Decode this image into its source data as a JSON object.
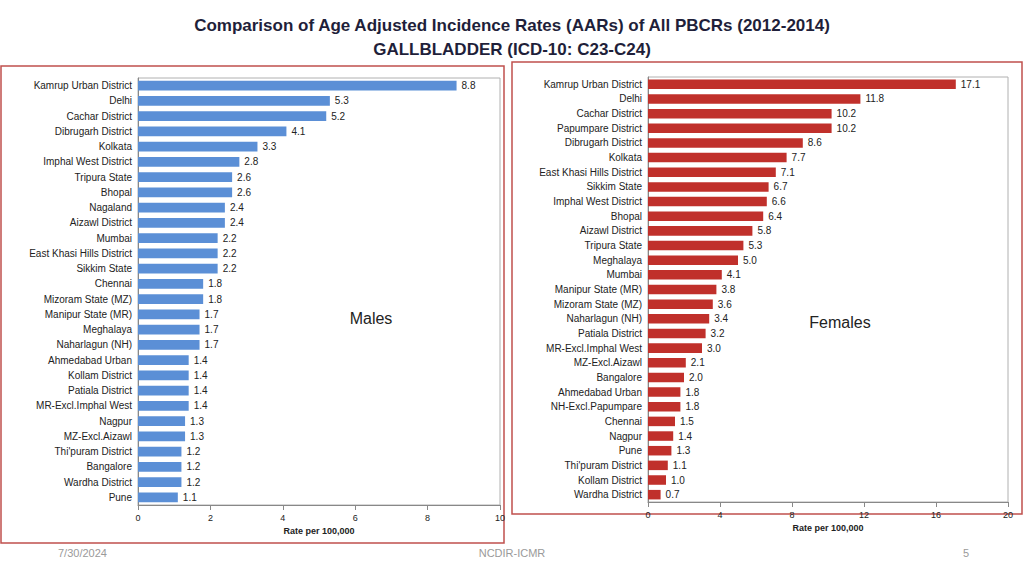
{
  "title": [
    "Comparison of Age Adjusted Incidence Rates (AARs) of All PBCRs (2012-2014)",
    "GALLBLADDER (ICD-10: C23-C24)"
  ],
  "footer": {
    "date": "7/30/2024",
    "source": "NCDIR-ICMR",
    "page": 5
  },
  "chart_data": [
    {
      "type": "bar",
      "orientation": "horizontal",
      "annotation": "Males",
      "xlabel": "Rate per 100,000",
      "categories": [
        "Kamrup Urban District",
        "Delhi",
        "Cachar District",
        "Dibrugarh District",
        "Kolkata",
        "Imphal West District",
        "Tripura State",
        "Bhopal",
        "Nagaland",
        "Aizawl District",
        "Mumbai",
        "East Khasi Hills District",
        "Sikkim State",
        "Chennai",
        "Mizoram State (MZ)",
        "Manipur State (MR)",
        "Meghalaya",
        "Naharlagun (NH)",
        "Ahmedabad Urban",
        "Kollam District",
        "Patiala District",
        "MR-Excl.Imphal West",
        "Nagpur",
        "MZ-Excl.Aizawl",
        "Thi'puram District",
        "Bangalore",
        "Wardha District",
        "Pune"
      ],
      "values": [
        8.8,
        5.3,
        5.2,
        4.1,
        3.3,
        2.8,
        2.6,
        2.6,
        2.4,
        2.4,
        2.2,
        2.2,
        2.2,
        1.8,
        1.8,
        1.7,
        1.7,
        1.7,
        1.4,
        1.4,
        1.4,
        1.4,
        1.3,
        1.3,
        1.2,
        1.2,
        1.2,
        1.1
      ],
      "value_labels": [
        "8.8",
        "5.3",
        "5.2",
        "4.1",
        "3.3",
        "2.8",
        "2.6",
        "2.6",
        "2.4",
        "2.4",
        "2.2",
        "2.2",
        "2.2",
        "1.8",
        "1.8",
        "1.7",
        "1.7",
        "1.7",
        "1.4",
        "1.4",
        "1.4",
        "1.4",
        "1.3",
        "1.3",
        "1.2",
        "1.2",
        "1.2",
        "1.1"
      ],
      "color": "#5b8fd6",
      "xlim": [
        0,
        10
      ],
      "xticks": [
        0,
        2,
        4,
        6,
        8,
        10
      ],
      "grid": false,
      "data_labels": true
    },
    {
      "type": "bar",
      "orientation": "horizontal",
      "annotation": "Females",
      "xlabel": "Rate per 100,000",
      "categories": [
        "Kamrup Urban District",
        "Delhi",
        "Cachar District",
        "Papumpare District",
        "Dibrugarh District",
        "Kolkata",
        "East Khasi Hills District",
        "Sikkim State",
        "Imphal West District",
        "Bhopal",
        "Aizawl District",
        "Tripura State",
        "Meghalaya",
        "Mumbai",
        "Manipur State (MR)",
        "Mizoram State (MZ)",
        "Naharlagun (NH)",
        "Patiala District",
        "MR-Excl.Imphal West",
        "MZ-Excl.Aizawl",
        "Bangalore",
        "Ahmedabad Urban",
        "NH-Excl.Papumpare",
        "Chennai",
        "Nagpur",
        "Pune",
        "Thi'puram District",
        "Kollam District",
        "Wardha District"
      ],
      "values": [
        17.1,
        11.8,
        10.2,
        10.2,
        8.6,
        7.7,
        7.1,
        6.7,
        6.6,
        6.4,
        5.8,
        5.3,
        5.0,
        4.1,
        3.8,
        3.6,
        3.4,
        3.2,
        3.0,
        2.1,
        2.0,
        1.8,
        1.8,
        1.5,
        1.4,
        1.3,
        1.1,
        1.0,
        0.7
      ],
      "value_labels": [
        "17.1",
        "11.8",
        "10.2",
        "10.2",
        "8.6",
        "7.7",
        "7.1",
        "6.7",
        "6.6",
        "6.4",
        "5.8",
        "5.3",
        "5.0",
        "4.1",
        "3.8",
        "3.6",
        "3.4",
        "3.2",
        "3.0",
        "2.1",
        "2.0",
        "1.8",
        "1.8",
        "1.5",
        "1.4",
        "1.3",
        "1.1",
        "1.0",
        "0.7"
      ],
      "color": "#c0302b",
      "xlim": [
        0,
        20
      ],
      "xticks": [
        0,
        4,
        8,
        12,
        16,
        20
      ],
      "grid": false,
      "data_labels": true
    }
  ]
}
